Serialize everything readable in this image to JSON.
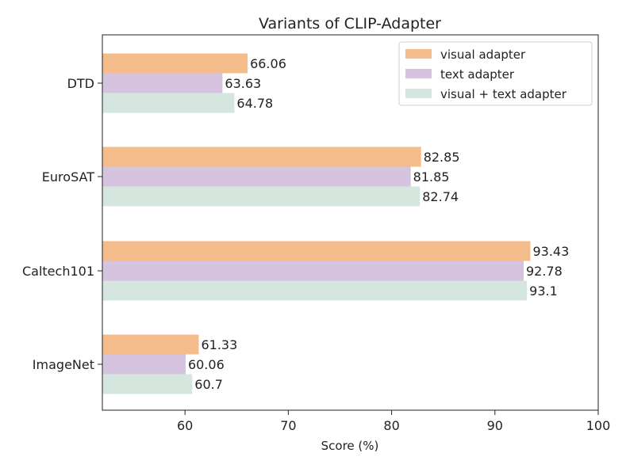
{
  "chart_data": {
    "type": "bar",
    "orientation": "horizontal",
    "title": "Variants of CLIP-Adapter",
    "xlabel": "Score (%)",
    "ylabel": "",
    "xlim": [
      52,
      100
    ],
    "xticks": [
      60,
      70,
      80,
      90,
      100
    ],
    "categories": [
      "DTD",
      "EuroSAT",
      "Caltech101",
      "ImageNet"
    ],
    "series": [
      {
        "name": "visual adapter",
        "color": "#f4bb8b",
        "values": [
          66.06,
          82.85,
          93.43,
          61.33
        ]
      },
      {
        "name": "text adapter",
        "color": "#d6c3e0",
        "values": [
          63.63,
          81.85,
          92.78,
          60.06
        ]
      },
      {
        "name": "visual + text adapter",
        "color": "#d5e6df",
        "values": [
          64.78,
          82.74,
          93.1,
          60.7
        ]
      }
    ],
    "data_labels": [
      [
        "66.06",
        "82.85",
        "93.43",
        "61.33"
      ],
      [
        "63.63",
        "81.85",
        "92.78",
        "60.06"
      ],
      [
        "64.78",
        "82.74",
        "93.1",
        "60.7"
      ]
    ],
    "grid": false,
    "legend_position": "top-right"
  }
}
